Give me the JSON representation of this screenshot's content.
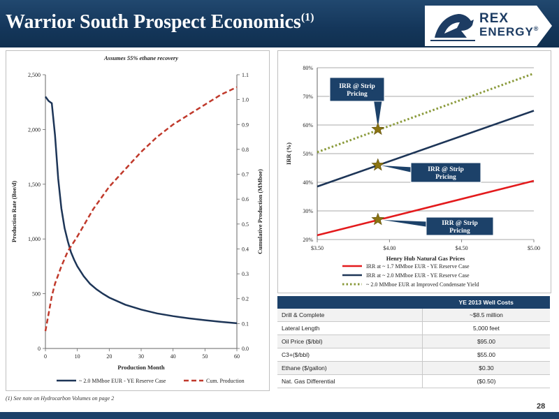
{
  "header": {
    "title": "Warrior South Prospect Economics",
    "title_sup": "(1)",
    "logo_line1": "REX",
    "logo_line2": "ENERGY",
    "logo_mark": "®"
  },
  "footnote": "(1)    See note on Hydrocarbon Volumes on page 2",
  "page_number": "28",
  "colors": {
    "header_blue": "#1c4169",
    "navy_series": "#1d3557",
    "red_series": "#e31a1c",
    "dashed_red": "#c0392b",
    "dotted_green": "#8a9a3b",
    "star": "#8b7412"
  },
  "chart_data": [
    {
      "type": "line",
      "title": "Assumes 55% ethane recovery",
      "xlabel": "Production Month",
      "ylabel": "Production Rate (Boe/d)",
      "y2label": "Cumulative Production (MMboe)",
      "xlim": [
        0,
        60
      ],
      "ylim": [
        0,
        2500
      ],
      "y2lim": [
        0,
        1.1
      ],
      "x_ticks": [
        "0",
        "10",
        "20",
        "30",
        "40",
        "50",
        "60"
      ],
      "y_ticks": [
        "0",
        "500",
        "1,000",
        "1,500",
        "2,000",
        "2,500"
      ],
      "y2_ticks": [
        "0.0",
        "0.1",
        "0.2",
        "0.3",
        "0.4",
        "0.5",
        "0.6",
        "0.7",
        "0.8",
        "0.9",
        "1.0",
        "1.1"
      ],
      "legend_position": "bottom",
      "series": [
        {
          "name": "~ 2.0 MMboe EUR - YE Reserve Case",
          "axis": "left",
          "style": "solid",
          "x": [
            0,
            1,
            2,
            3,
            4,
            5,
            6,
            7,
            8,
            9,
            10,
            12,
            14,
            16,
            18,
            20,
            25,
            30,
            35,
            40,
            45,
            50,
            55,
            60
          ],
          "y": [
            2300,
            2260,
            2240,
            1950,
            1550,
            1280,
            1100,
            980,
            880,
            810,
            750,
            660,
            590,
            540,
            500,
            465,
            400,
            355,
            320,
            295,
            275,
            258,
            243,
            230
          ]
        },
        {
          "name": "Cum. Production",
          "axis": "right",
          "style": "dashed",
          "x": [
            0,
            1,
            2,
            3,
            5,
            7,
            10,
            15,
            20,
            25,
            30,
            35,
            40,
            45,
            50,
            55,
            60
          ],
          "y": [
            0.07,
            0.14,
            0.21,
            0.26,
            0.33,
            0.39,
            0.45,
            0.56,
            0.65,
            0.72,
            0.79,
            0.85,
            0.9,
            0.94,
            0.98,
            1.02,
            1.05
          ]
        }
      ]
    },
    {
      "type": "line",
      "title": "",
      "xlabel": "Henry Hub Natural Gas Prices",
      "ylabel": "IRR (%)",
      "xlim": [
        3.5,
        5.0
      ],
      "ylim": [
        20,
        80
      ],
      "x_ticks": [
        "$3.50",
        "$4.00",
        "$4.50",
        "$5.00"
      ],
      "y_ticks": [
        "20%",
        "30%",
        "40%",
        "50%",
        "60%",
        "70%",
        "80%"
      ],
      "legend_position": "bottom",
      "series": [
        {
          "name": "IRR at ~ 1.7 MMboe EUR - YE Reserve Case",
          "style": "solid",
          "color": "red",
          "x": [
            3.5,
            5.0
          ],
          "y": [
            21.5,
            40.5
          ]
        },
        {
          "name": "IRR at ~ 2.0 MMboe EUR - YE Reserve Case",
          "style": "solid",
          "color": "navy",
          "x": [
            3.5,
            5.0
          ],
          "y": [
            38.5,
            65
          ]
        },
        {
          "name": "~ 2.0 MMboe EUR at Improved Condensate Yield",
          "style": "dotted",
          "color": "green",
          "x": [
            3.5,
            5.0
          ],
          "y": [
            50.5,
            78
          ]
        }
      ],
      "strip_markers": [
        {
          "x": 3.92,
          "y": 58.5,
          "series": "~ 2.0 MMboe EUR at Improved Condensate Yield"
        },
        {
          "x": 3.92,
          "y": 46.0,
          "series": "IRR at ~ 2.0 MMboe EUR - YE Reserve Case"
        },
        {
          "x": 3.92,
          "y": 27.0,
          "series": "IRR at ~ 1.7 MMboe EUR - YE Reserve Case"
        }
      ],
      "annotations": [
        {
          "line1": "IRR @ Strip",
          "line2": "Pricing"
        },
        {
          "line1": "IRR @ Strip",
          "line2": "Pricing"
        },
        {
          "line1": "IRR @ Strip",
          "line2": "Pricing"
        }
      ]
    }
  ],
  "well_costs": {
    "title": "YE 2013 Well Costs",
    "rows": [
      {
        "label": "Drill & Complete",
        "value": "~$8.5 million"
      },
      {
        "label": "Lateral Length",
        "value": "5,000 feet"
      },
      {
        "label": "Oil Price ($/bbl)",
        "value": "$95.00"
      },
      {
        "label": "C3+($/bbl)",
        "value": "$55.00"
      },
      {
        "label": "Ethane ($/gallon)",
        "value": "$0.30"
      },
      {
        "label": "Nat. Gas Differential",
        "value": "($0.50)"
      }
    ]
  }
}
